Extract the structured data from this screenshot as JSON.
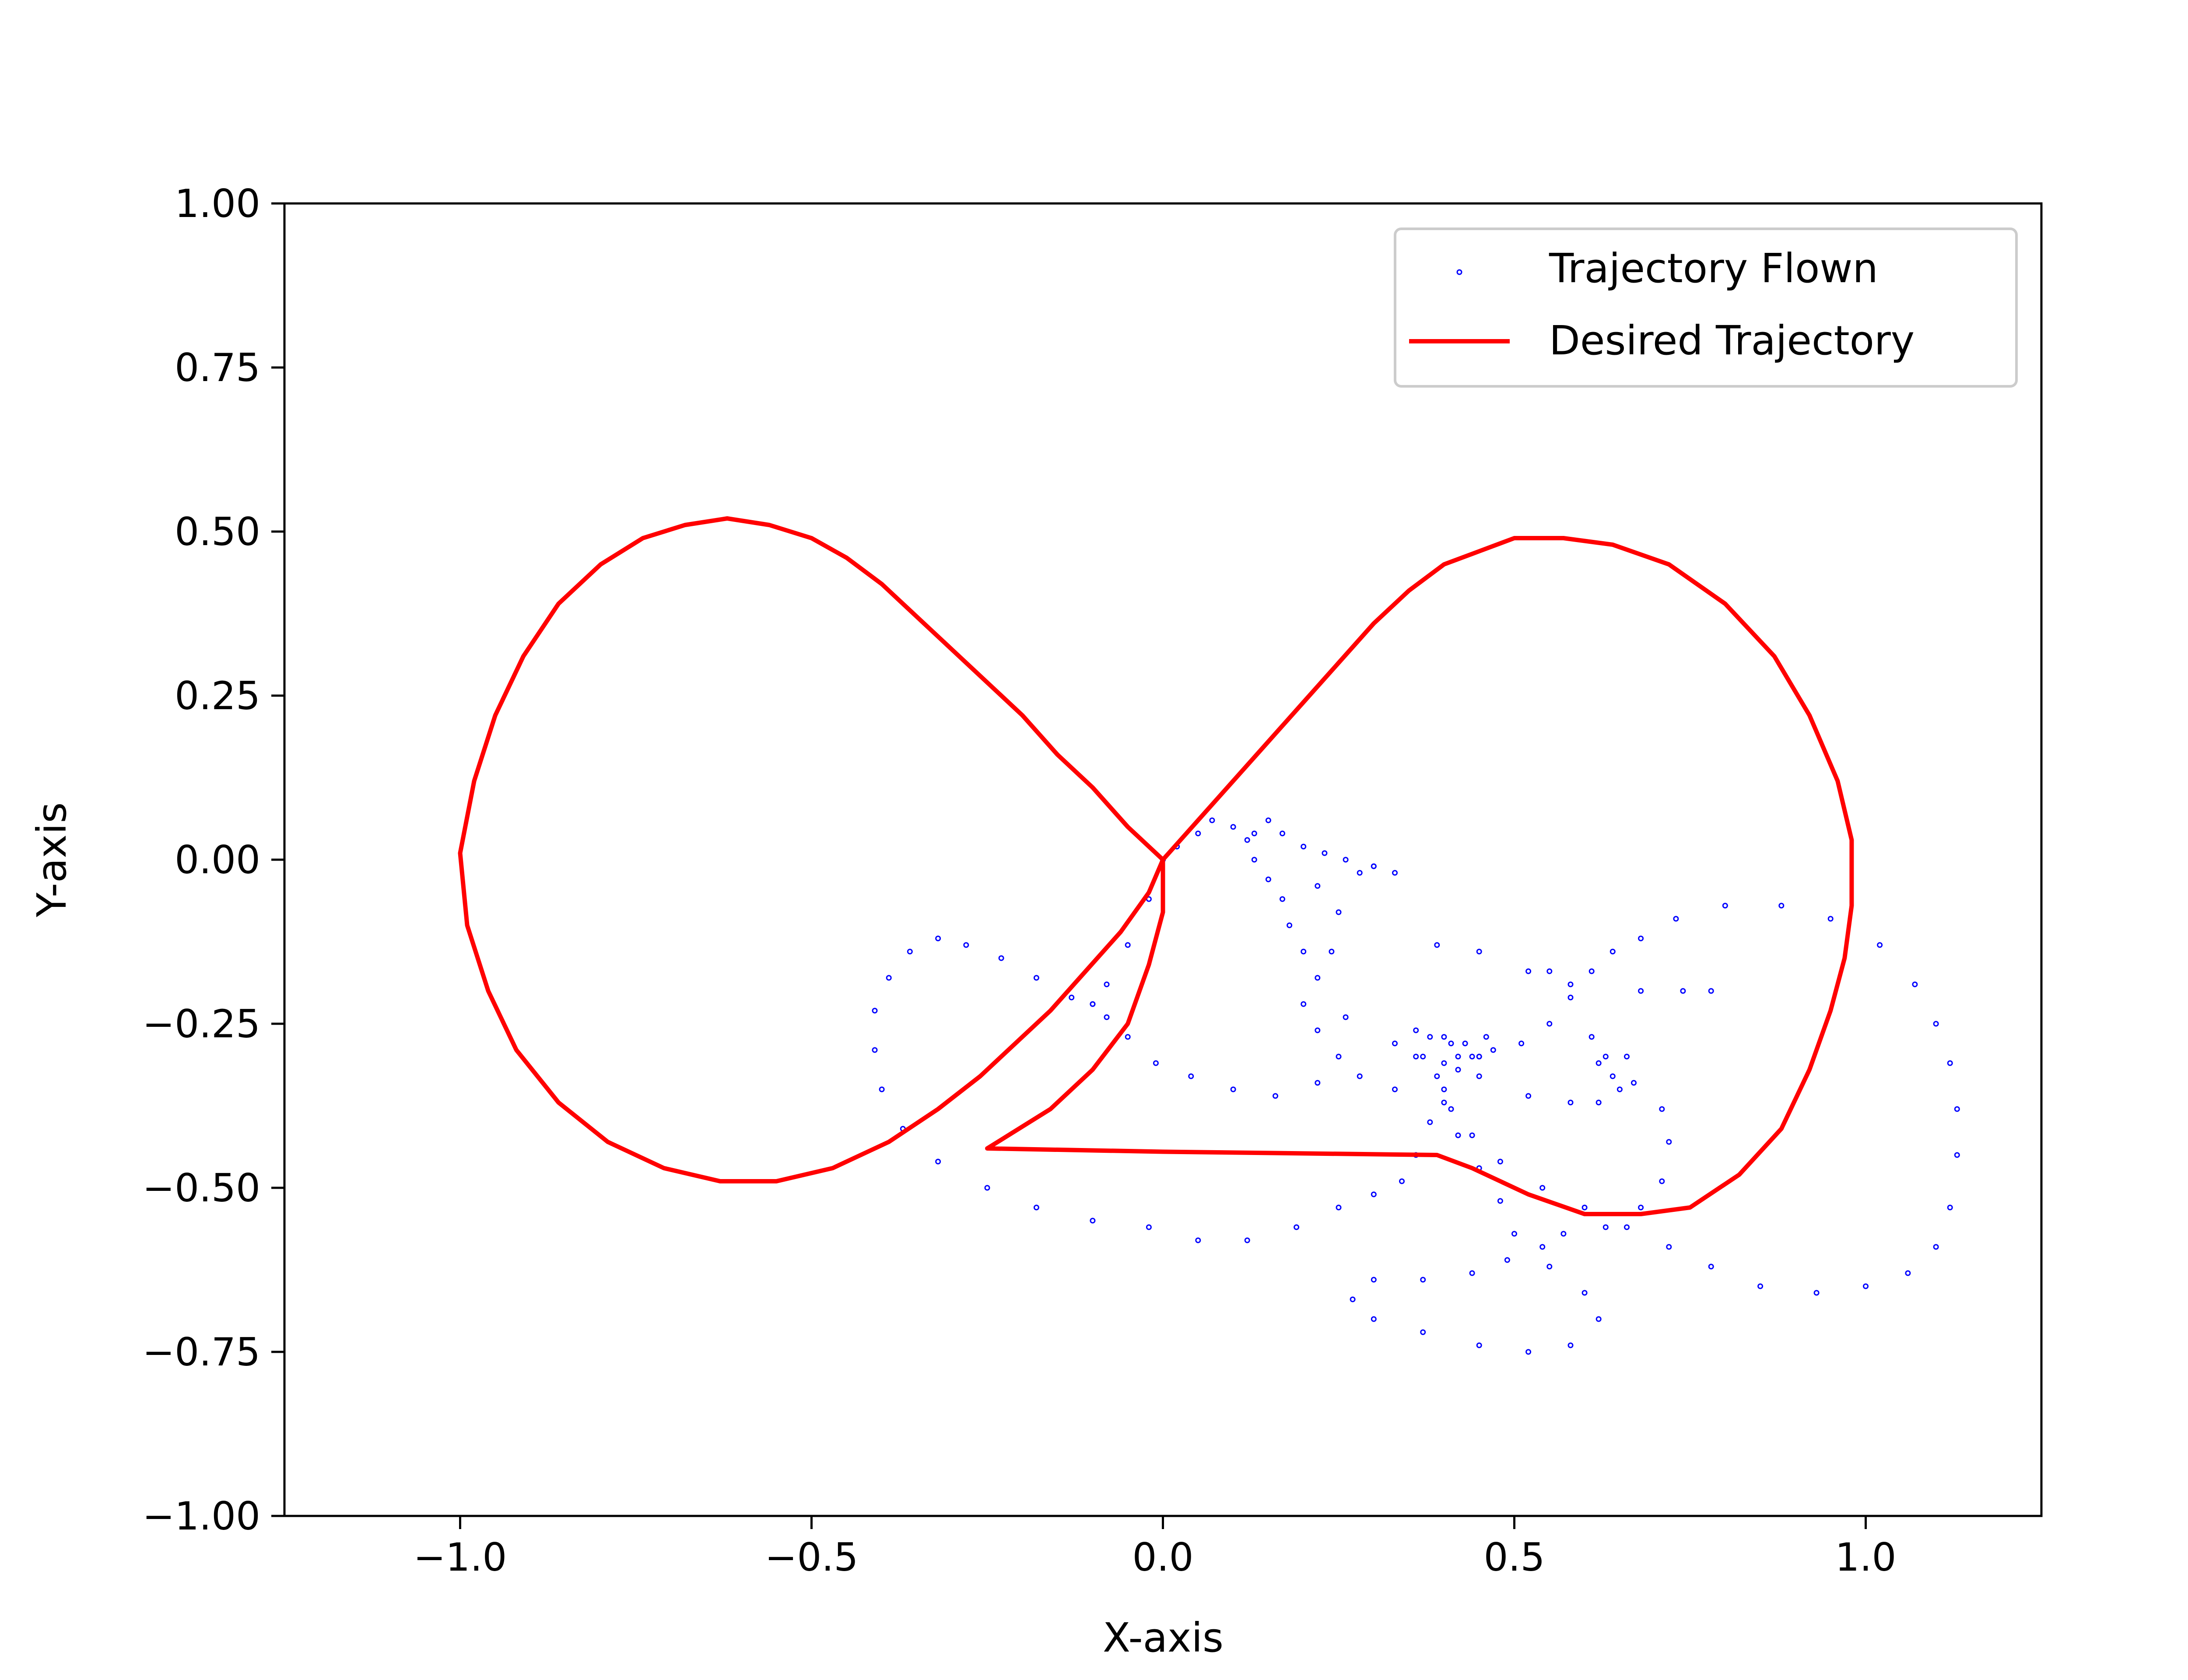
{
  "chart_data": {
    "type": "line",
    "title": "",
    "xlabel": "X-axis",
    "ylabel": "Y-axis",
    "xlim": [
      -1.25,
      1.25
    ],
    "ylim": [
      -1.0,
      1.0
    ],
    "x_ticks": [
      -1.0,
      -0.5,
      0.0,
      0.5,
      1.0
    ],
    "x_tick_labels": [
      "−1.0",
      "−0.5",
      "0.0",
      "0.5",
      "1.0"
    ],
    "y_ticks": [
      1.0,
      0.75,
      0.5,
      0.25,
      0.0,
      -0.25,
      -0.5,
      -0.75,
      -1.0
    ],
    "y_tick_labels": [
      "1.00",
      "0.75",
      "0.50",
      "0.25",
      "0.00",
      "−0.25",
      "−0.50",
      "−0.75",
      "−1.00"
    ],
    "grid": false,
    "legend_position": "top-right",
    "series": [
      {
        "name": "Trajectory Flown",
        "kind": "scatter",
        "color": "#0000ff",
        "points": [
          [
            0.0,
            0.0
          ],
          [
            0.02,
            0.02
          ],
          [
            0.05,
            0.04
          ],
          [
            0.07,
            0.06
          ],
          [
            0.1,
            0.05
          ],
          [
            0.13,
            0.04
          ],
          [
            0.15,
            0.06
          ],
          [
            0.17,
            0.04
          ],
          [
            0.2,
            0.02
          ],
          [
            0.23,
            0.01
          ],
          [
            0.26,
            0.0
          ],
          [
            0.3,
            -0.01
          ],
          [
            0.33,
            -0.02
          ],
          [
            0.12,
            0.03
          ],
          [
            0.13,
            0.0
          ],
          [
            0.15,
            -0.03
          ],
          [
            0.17,
            -0.06
          ],
          [
            0.18,
            -0.1
          ],
          [
            0.2,
            -0.14
          ],
          [
            0.22,
            -0.18
          ],
          [
            0.2,
            -0.22
          ],
          [
            0.22,
            -0.26
          ],
          [
            0.25,
            -0.3
          ],
          [
            0.26,
            -0.24
          ],
          [
            0.24,
            -0.14
          ],
          [
            0.25,
            -0.08
          ],
          [
            0.22,
            -0.04
          ],
          [
            0.28,
            -0.02
          ],
          [
            0.3,
            -0.01
          ],
          [
            0.0,
            0.0
          ],
          [
            -0.02,
            -0.06
          ],
          [
            -0.05,
            -0.13
          ],
          [
            -0.08,
            -0.19
          ],
          [
            -0.1,
            -0.22
          ],
          [
            -0.1,
            -0.22
          ],
          [
            -0.08,
            -0.24
          ],
          [
            -0.05,
            -0.27
          ],
          [
            -0.01,
            -0.31
          ],
          [
            0.04,
            -0.33
          ],
          [
            0.1,
            -0.35
          ],
          [
            0.16,
            -0.36
          ],
          [
            0.22,
            -0.34
          ],
          [
            0.28,
            -0.33
          ],
          [
            0.33,
            -0.35
          ],
          [
            -0.13,
            -0.21
          ],
          [
            -0.18,
            -0.18
          ],
          [
            -0.23,
            -0.15
          ],
          [
            -0.28,
            -0.13
          ],
          [
            -0.32,
            -0.12
          ],
          [
            -0.36,
            -0.14
          ],
          [
            -0.39,
            -0.18
          ],
          [
            -0.41,
            -0.23
          ],
          [
            -0.41,
            -0.29
          ],
          [
            -0.4,
            -0.35
          ],
          [
            -0.37,
            -0.41
          ],
          [
            -0.32,
            -0.46
          ],
          [
            -0.25,
            -0.5
          ],
          [
            -0.18,
            -0.53
          ],
          [
            -0.1,
            -0.55
          ],
          [
            -0.02,
            -0.56
          ],
          [
            0.05,
            -0.58
          ],
          [
            0.12,
            -0.58
          ],
          [
            0.19,
            -0.56
          ],
          [
            0.25,
            -0.53
          ],
          [
            0.3,
            -0.51
          ],
          [
            0.34,
            -0.49
          ],
          [
            0.36,
            -0.45
          ],
          [
            0.38,
            -0.4
          ],
          [
            0.4,
            -0.35
          ],
          [
            0.42,
            -0.32
          ],
          [
            0.45,
            -0.3
          ],
          [
            0.4,
            -0.37
          ],
          [
            0.42,
            -0.42
          ],
          [
            0.45,
            -0.47
          ],
          [
            0.48,
            -0.52
          ],
          [
            0.5,
            -0.57
          ],
          [
            0.49,
            -0.61
          ],
          [
            0.44,
            -0.63
          ],
          [
            0.37,
            -0.64
          ],
          [
            0.3,
            -0.64
          ],
          [
            0.27,
            -0.67
          ],
          [
            0.3,
            -0.7
          ],
          [
            0.37,
            -0.72
          ],
          [
            0.45,
            -0.74
          ],
          [
            0.52,
            -0.75
          ],
          [
            0.58,
            -0.74
          ],
          [
            0.62,
            -0.7
          ],
          [
            0.6,
            -0.66
          ],
          [
            0.55,
            -0.62
          ],
          [
            0.54,
            -0.59
          ],
          [
            0.57,
            -0.57
          ],
          [
            0.63,
            -0.56
          ],
          [
            0.68,
            -0.53
          ],
          [
            0.71,
            -0.49
          ],
          [
            0.72,
            -0.43
          ],
          [
            0.71,
            -0.38
          ],
          [
            0.67,
            -0.34
          ],
          [
            0.63,
            -0.3
          ],
          [
            0.61,
            -0.27
          ],
          [
            0.62,
            -0.31
          ],
          [
            0.64,
            -0.33
          ],
          [
            0.66,
            -0.3
          ],
          [
            0.65,
            -0.35
          ],
          [
            0.62,
            -0.37
          ],
          [
            0.58,
            -0.37
          ],
          [
            0.52,
            -0.36
          ],
          [
            0.45,
            -0.33
          ],
          [
            0.33,
            -0.28
          ],
          [
            0.36,
            -0.26
          ],
          [
            0.4,
            -0.27
          ],
          [
            0.43,
            -0.28
          ],
          [
            0.46,
            -0.27
          ],
          [
            0.44,
            -0.3
          ],
          [
            0.4,
            -0.31
          ],
          [
            0.36,
            -0.3
          ],
          [
            0.38,
            -0.27
          ],
          [
            0.42,
            -0.3
          ],
          [
            0.45,
            -0.3
          ],
          [
            0.41,
            -0.28
          ],
          [
            0.47,
            -0.29
          ],
          [
            0.51,
            -0.28
          ],
          [
            0.55,
            -0.25
          ],
          [
            0.58,
            -0.21
          ],
          [
            0.61,
            -0.17
          ],
          [
            0.64,
            -0.14
          ],
          [
            0.68,
            -0.12
          ],
          [
            0.73,
            -0.09
          ],
          [
            0.8,
            -0.07
          ],
          [
            0.88,
            -0.07
          ],
          [
            0.95,
            -0.09
          ],
          [
            1.02,
            -0.13
          ],
          [
            1.07,
            -0.19
          ],
          [
            1.1,
            -0.25
          ],
          [
            1.12,
            -0.31
          ],
          [
            1.13,
            -0.38
          ],
          [
            1.13,
            -0.45
          ],
          [
            1.12,
            -0.53
          ],
          [
            1.1,
            -0.59
          ],
          [
            1.06,
            -0.63
          ],
          [
            1.0,
            -0.65
          ],
          [
            0.93,
            -0.66
          ],
          [
            0.85,
            -0.65
          ],
          [
            0.78,
            -0.62
          ],
          [
            0.72,
            -0.59
          ],
          [
            0.66,
            -0.56
          ],
          [
            0.6,
            -0.53
          ],
          [
            0.54,
            -0.5
          ],
          [
            0.48,
            -0.46
          ],
          [
            0.44,
            -0.42
          ],
          [
            0.41,
            -0.38
          ],
          [
            0.39,
            -0.33
          ],
          [
            0.37,
            -0.3
          ],
          [
            0.39,
            -0.13
          ],
          [
            0.45,
            -0.14
          ],
          [
            0.52,
            -0.17
          ],
          [
            0.55,
            -0.17
          ],
          [
            0.58,
            -0.19
          ],
          [
            0.68,
            -0.2
          ],
          [
            0.74,
            -0.2
          ],
          [
            0.78,
            -0.2
          ]
        ]
      },
      {
        "name": "Desired Trajectory",
        "kind": "line",
        "color": "#ff0000",
        "points": [
          [
            0.0,
            0.0
          ],
          [
            -0.05,
            0.05
          ],
          [
            -0.1,
            0.11
          ],
          [
            -0.15,
            0.16
          ],
          [
            -0.2,
            0.22
          ],
          [
            -0.25,
            0.27
          ],
          [
            -0.3,
            0.32
          ],
          [
            -0.35,
            0.37
          ],
          [
            -0.4,
            0.42
          ],
          [
            -0.45,
            0.46
          ],
          [
            -0.5,
            0.49
          ],
          [
            -0.56,
            0.51
          ],
          [
            -0.62,
            0.52
          ],
          [
            -0.68,
            0.51
          ],
          [
            -0.74,
            0.49
          ],
          [
            -0.8,
            0.45
          ],
          [
            -0.86,
            0.39
          ],
          [
            -0.91,
            0.31
          ],
          [
            -0.95,
            0.22
          ],
          [
            -0.98,
            0.12
          ],
          [
            -1.0,
            0.01
          ],
          [
            -0.99,
            -0.1
          ],
          [
            -0.96,
            -0.2
          ],
          [
            -0.92,
            -0.29
          ],
          [
            -0.86,
            -0.37
          ],
          [
            -0.79,
            -0.43
          ],
          [
            -0.71,
            -0.47
          ],
          [
            -0.63,
            -0.49
          ],
          [
            -0.55,
            -0.49
          ],
          [
            -0.47,
            -0.47
          ],
          [
            -0.39,
            -0.43
          ],
          [
            -0.32,
            -0.38
          ],
          [
            -0.26,
            -0.33
          ],
          [
            -0.21,
            -0.28
          ],
          [
            -0.16,
            -0.23
          ],
          [
            -0.11,
            -0.17
          ],
          [
            -0.06,
            -0.11
          ],
          [
            -0.02,
            -0.05
          ],
          [
            0.0,
            0.0
          ],
          [
            0.05,
            0.06
          ],
          [
            0.1,
            0.12
          ],
          [
            0.15,
            0.18
          ],
          [
            0.2,
            0.24
          ],
          [
            0.25,
            0.3
          ],
          [
            0.3,
            0.36
          ],
          [
            0.35,
            0.41
          ],
          [
            0.4,
            0.45
          ],
          [
            0.45,
            0.47
          ],
          [
            0.5,
            0.49
          ],
          [
            0.57,
            0.49
          ],
          [
            0.64,
            0.48
          ],
          [
            0.72,
            0.45
          ],
          [
            0.8,
            0.39
          ],
          [
            0.87,
            0.31
          ],
          [
            0.92,
            0.22
          ],
          [
            0.96,
            0.12
          ],
          [
            0.98,
            0.03
          ],
          [
            0.98,
            -0.07
          ],
          [
            0.97,
            -0.15
          ],
          [
            0.95,
            -0.23
          ],
          [
            0.92,
            -0.32
          ],
          [
            0.88,
            -0.41
          ],
          [
            0.82,
            -0.48
          ],
          [
            0.75,
            -0.53
          ],
          [
            0.68,
            -0.54
          ],
          [
            0.6,
            -0.54
          ],
          [
            0.52,
            -0.51
          ],
          [
            0.44,
            -0.47
          ],
          [
            0.39,
            -0.45
          ],
          [
            0.0,
            -0.445
          ],
          [
            -0.25,
            -0.44
          ],
          [
            -0.22,
            -0.42
          ],
          [
            -0.16,
            -0.38
          ],
          [
            -0.1,
            -0.32
          ],
          [
            -0.05,
            -0.25
          ],
          [
            -0.02,
            -0.16
          ],
          [
            0.0,
            -0.08
          ],
          [
            0.0,
            0.0
          ]
        ]
      }
    ]
  }
}
